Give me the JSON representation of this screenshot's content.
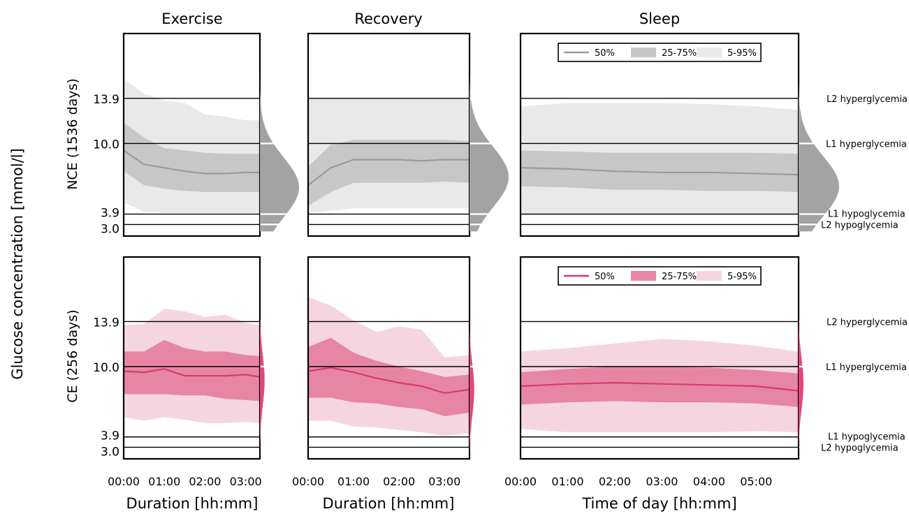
{
  "figure": {
    "ylabel_main": "Glucose concentration [mmol/l]",
    "colors": {
      "nce_median": "#9a9a9a",
      "nce_iqr": "#c7c7c7",
      "nce_outer": "#e9e9e9",
      "nce_density": "#a3a3a3",
      "ce_median": "#d63a6f",
      "ce_iqr": "#e686a4",
      "ce_outer": "#f5d6e0",
      "ce_density": "#e0487a"
    }
  },
  "chart_data": {
    "type": "area",
    "columns": [
      {
        "title": "Exercise",
        "xlabel": "Duration [hh:mm]",
        "xticks": [
          "00:00",
          "01:00",
          "02:00",
          "03:00"
        ],
        "xlim": [
          0,
          3.35
        ]
      },
      {
        "title": "Recovery",
        "xlabel": "Duration [hh:mm]",
        "xticks": [
          "00:00",
          "01:00",
          "02:00",
          "03:00"
        ],
        "xlim": [
          0,
          3.55
        ]
      },
      {
        "title": "Sleep",
        "xlabel": "Time of day [hh:mm]",
        "xticks": [
          "00:00",
          "01:00",
          "02:00",
          "03:00",
          "04:00",
          "05:00"
        ],
        "xlim": [
          0,
          5.9
        ]
      }
    ],
    "rows": [
      {
        "ylabel": "NCE (1536 days)",
        "group": "nce"
      },
      {
        "ylabel": "CE (256 days)",
        "group": "ce"
      }
    ],
    "yticks": [
      "3.0",
      "3.9",
      "10.0",
      "13.9"
    ],
    "ylim": [
      2.0,
      19.5
    ],
    "thresholds": [
      {
        "value": 13.9,
        "label": "L2 hyperglycemia"
      },
      {
        "value": 10.0,
        "label": "L1 hyperglycemia"
      },
      {
        "value": 3.9,
        "label": "L1 hypoglycemia"
      },
      {
        "value": 3.0,
        "label": "L2 hypoglycemia"
      }
    ],
    "legend": {
      "placement": "top-center",
      "entries": [
        "50%",
        "25-75%",
        "5-95%"
      ]
    },
    "panels": [
      {
        "row": "nce",
        "col": "Exercise",
        "x": [
          0,
          0.5,
          1,
          1.5,
          2,
          2.5,
          3,
          3.35
        ],
        "p50": [
          9.4,
          8.2,
          7.9,
          7.6,
          7.4,
          7.4,
          7.5,
          7.5
        ],
        "p25": [
          11.8,
          10.5,
          9.6,
          9.4,
          9.2,
          9.1,
          9.1,
          9.1
        ],
        "p75": [
          7.6,
          6.4,
          6.1,
          5.9,
          5.8,
          5.8,
          5.8,
          5.8
        ],
        "p05": [
          15.6,
          14.3,
          13.7,
          13.5,
          12.5,
          12.3,
          12.0,
          12.0
        ],
        "p95": [
          4.9,
          4.1,
          4.0,
          4.0,
          4.0,
          4.0,
          4.0,
          4.0
        ],
        "density_peak": 6.2
      },
      {
        "row": "nce",
        "col": "Recovery",
        "x": [
          0,
          0.5,
          1,
          1.5,
          2,
          2.5,
          3,
          3.55
        ],
        "p50": [
          6.4,
          7.9,
          8.6,
          8.6,
          8.6,
          8.5,
          8.6,
          8.6
        ],
        "p25": [
          8.0,
          9.9,
          10.3,
          10.3,
          10.3,
          10.3,
          10.3,
          10.2
        ],
        "p75": [
          4.6,
          5.8,
          6.6,
          6.6,
          6.6,
          6.6,
          6.7,
          6.6
        ],
        "p05": [
          13.9,
          13.9,
          13.9,
          13.9,
          13.9,
          13.9,
          13.9,
          13.9
        ],
        "p95": [
          4.0,
          4.2,
          4.4,
          4.4,
          4.4,
          4.4,
          4.4,
          4.4
        ],
        "density_peak": 7.1
      },
      {
        "row": "nce",
        "col": "Sleep",
        "x": [
          0,
          1,
          2,
          3,
          4,
          5,
          5.9
        ],
        "p50": [
          7.9,
          7.8,
          7.6,
          7.5,
          7.5,
          7.4,
          7.3
        ],
        "p25": [
          9.4,
          9.3,
          9.2,
          9.2,
          9.2,
          9.2,
          9.1
        ],
        "p75": [
          6.3,
          6.2,
          6.0,
          6.0,
          5.9,
          5.9,
          5.8
        ],
        "p05": [
          13.2,
          13.5,
          13.5,
          13.5,
          13.4,
          13.2,
          12.9
        ],
        "p95": [
          3.8,
          3.8,
          3.8,
          3.8,
          3.8,
          3.8,
          3.8
        ],
        "density_peak": 6.3
      },
      {
        "row": "ce",
        "col": "Exercise",
        "x": [
          0,
          0.5,
          1,
          1.5,
          2,
          2.5,
          3,
          3.35
        ],
        "p50": [
          9.6,
          9.5,
          9.8,
          9.2,
          9.2,
          9.2,
          9.3,
          9.1
        ],
        "p25": [
          11.3,
          11.3,
          12.3,
          11.6,
          11.3,
          11.3,
          11.0,
          10.9
        ],
        "p75": [
          7.6,
          7.6,
          7.6,
          7.5,
          7.5,
          7.2,
          7.1,
          7.0
        ],
        "p05": [
          13.6,
          13.7,
          15.0,
          14.8,
          14.3,
          14.5,
          13.8,
          13.6
        ],
        "p95": [
          5.6,
          5.3,
          5.6,
          5.4,
          5.1,
          5.1,
          5.2,
          5.1
        ],
        "density_peak": 8.8
      },
      {
        "row": "ce",
        "col": "Recovery",
        "x": [
          0,
          0.5,
          1,
          1.5,
          2,
          2.5,
          3,
          3.55
        ],
        "p50": [
          9.6,
          9.9,
          9.5,
          9.0,
          8.6,
          8.3,
          7.7,
          8.0
        ],
        "p25": [
          11.7,
          12.5,
          11.2,
          10.5,
          10.0,
          9.6,
          9.1,
          9.3
        ],
        "p75": [
          7.3,
          7.3,
          6.9,
          6.8,
          6.5,
          6.3,
          5.7,
          6.0
        ],
        "p05": [
          16.0,
          15.3,
          14.0,
          13.0,
          13.5,
          13.2,
          10.8,
          11.0
        ],
        "p95": [
          5.3,
          5.3,
          4.8,
          4.7,
          4.5,
          4.3,
          4.0,
          4.2
        ],
        "density_peak": 8.0
      },
      {
        "row": "ce",
        "col": "Sleep",
        "x": [
          0,
          1,
          2,
          3,
          4,
          5,
          5.9
        ],
        "p50": [
          8.3,
          8.5,
          8.6,
          8.5,
          8.4,
          8.3,
          7.9
        ],
        "p25": [
          9.5,
          9.8,
          10.0,
          10.0,
          9.9,
          9.7,
          9.4
        ],
        "p75": [
          6.7,
          6.9,
          7.0,
          6.9,
          6.9,
          6.8,
          6.5
        ],
        "p05": [
          11.3,
          11.6,
          12.0,
          12.4,
          12.2,
          11.8,
          11.3
        ],
        "p95": [
          4.6,
          4.3,
          4.3,
          4.3,
          4.3,
          4.4,
          4.3
        ],
        "density_peak": 8.5
      }
    ]
  }
}
